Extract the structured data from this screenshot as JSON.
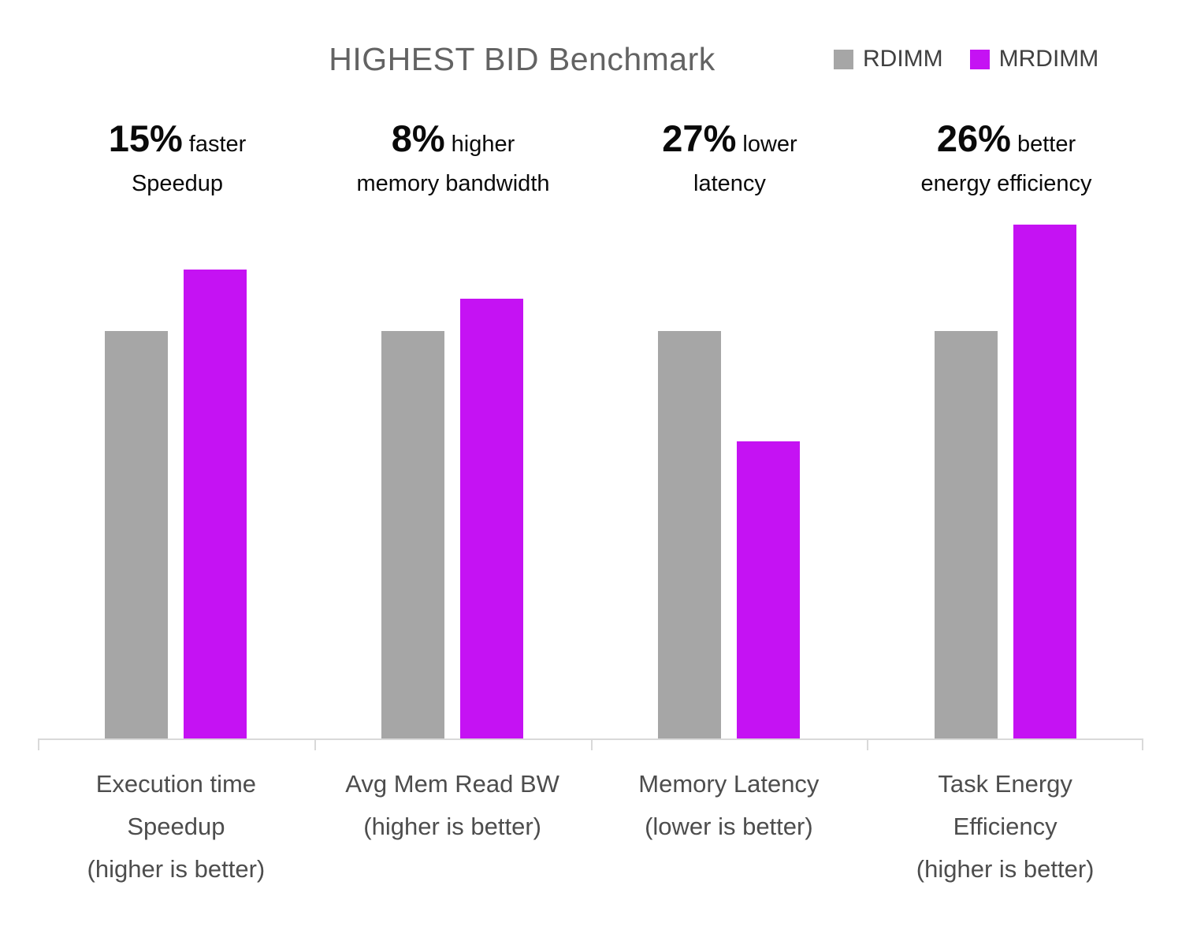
{
  "title": "HIGHEST BID Benchmark",
  "legend": {
    "items": [
      {
        "label": "RDIMM",
        "color": "#A6A6A6"
      },
      {
        "label": "MRDIMM",
        "color": "#C512F3"
      }
    ]
  },
  "annotations": [
    {
      "big": "15%",
      "small": "faster",
      "second_line": "Speedup"
    },
    {
      "big": "8%",
      "small": "higher",
      "second_line": "memory bandwidth"
    },
    {
      "big": "27%",
      "small": "lower",
      "second_line": "latency"
    },
    {
      "big": "26%",
      "small": "better",
      "second_line": "energy efficiency"
    }
  ],
  "chart_data": {
    "type": "bar",
    "title": "HIGHEST BID Benchmark",
    "categories": [
      "Execution time Speedup (higher is better)",
      "Avg Mem Read BW (higher is better)",
      "Memory Latency (lower is better)",
      "Task Energy Efficiency (higher is better)"
    ],
    "category_label_lines": [
      [
        "Execution time",
        "Speedup",
        "(higher is better)"
      ],
      [
        "Avg Mem Read BW",
        "(higher is better)"
      ],
      [
        "Memory Latency",
        "(lower is better)"
      ],
      [
        "Task Energy",
        "Efficiency",
        "(higher is better)"
      ]
    ],
    "series": [
      {
        "name": "RDIMM",
        "color": "#A6A6A6",
        "values": [
          1.0,
          1.0,
          1.0,
          1.0
        ]
      },
      {
        "name": "MRDIMM",
        "color": "#C512F3",
        "values": [
          1.15,
          1.08,
          0.73,
          1.26
        ]
      }
    ],
    "value_basis": "relative to RDIMM = 1.0",
    "ylim": [
      0,
      1.3
    ],
    "grid": false,
    "y_axis_visible": false,
    "legend_position": "top-right",
    "axis_color": "#D9D9D9"
  },
  "layout_colors": {
    "title_text": "#636363",
    "legend_text": "#404040",
    "annotation_text": "#0a0a0a",
    "axis_label_text": "#4d4d4d",
    "axis_line": "#D9D9D9"
  }
}
